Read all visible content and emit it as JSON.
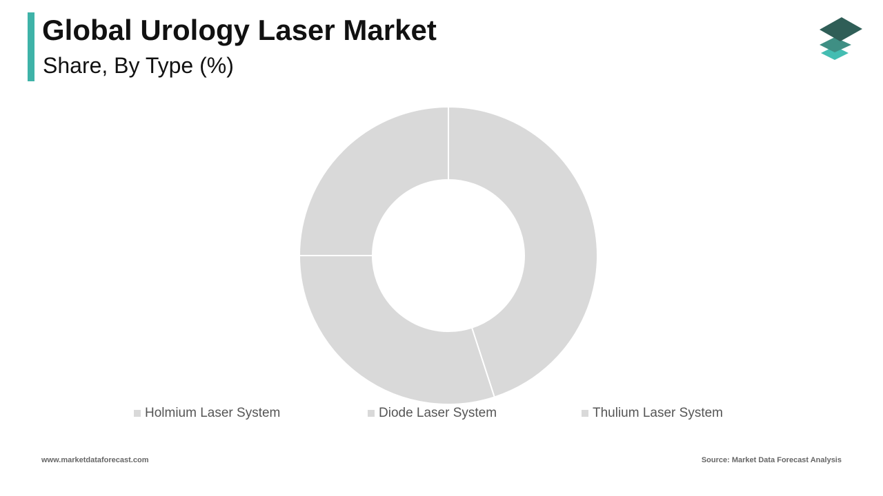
{
  "header": {
    "title": "Global Urology Laser Market",
    "subtitle": "Share, By Type (%)"
  },
  "logo": {
    "icon": "layered-diamonds-logo",
    "colors": [
      "#2f5e57",
      "#3f8f84",
      "#44bdb2"
    ]
  },
  "chart_data": {
    "type": "pie",
    "variant": "donut",
    "title": "Global Urology Laser Market",
    "subtitle": "Share, By Type (%)",
    "categories": [
      "Holmium Laser System",
      "Diode Laser System",
      "Thulium Laser System"
    ],
    "values": [
      45,
      30,
      25
    ],
    "colors": [
      "#d9d9d9",
      "#d9d9d9",
      "#d9d9d9"
    ],
    "data_labels_shown": false,
    "legend_position": "bottom"
  },
  "footer": {
    "website": "www.marketdataforecast.com",
    "source": "Source: Market Data Forecast Analysis"
  }
}
